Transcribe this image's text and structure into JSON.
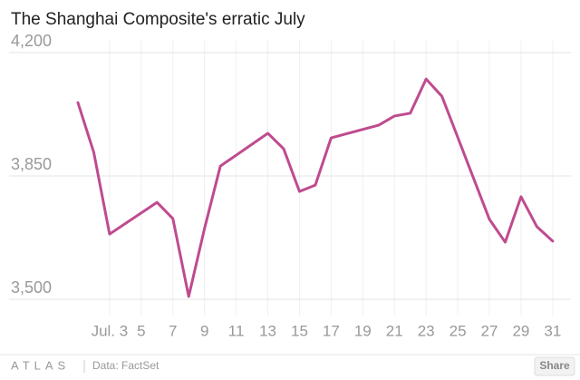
{
  "chart_data": {
    "type": "line",
    "title": "The Shanghai Composite's erratic July",
    "x": [
      1,
      2,
      3,
      6,
      7,
      8,
      9,
      10,
      13,
      14,
      15,
      16,
      17,
      20,
      21,
      22,
      23,
      24,
      27,
      28,
      29,
      30,
      31
    ],
    "values": [
      4058,
      3917,
      3685,
      3775,
      3729,
      3508,
      3701,
      3878,
      3971,
      3927,
      3806,
      3824,
      3958,
      3994,
      4020,
      4028,
      4125,
      4076,
      3727,
      3662,
      3791,
      3706,
      3665
    ],
    "color": "#bf4b8f",
    "xlim": [
      0.6,
      31.5
    ],
    "xticks": [
      {
        "value": 3,
        "label": "Jul. 3"
      },
      5,
      7,
      9,
      11,
      13,
      15,
      17,
      19,
      21,
      23,
      25,
      27,
      29,
      31
    ],
    "ylim": [
      3500,
      4200
    ],
    "yticks": [
      {
        "value": 3500,
        "label": "3,500"
      },
      {
        "value": 3850,
        "label": "3,850"
      },
      {
        "value": 4200,
        "label": "4,200"
      }
    ],
    "grid": true
  },
  "footer": {
    "logo": "ATLAS",
    "source": "Data: FactSet",
    "share": "Share"
  }
}
